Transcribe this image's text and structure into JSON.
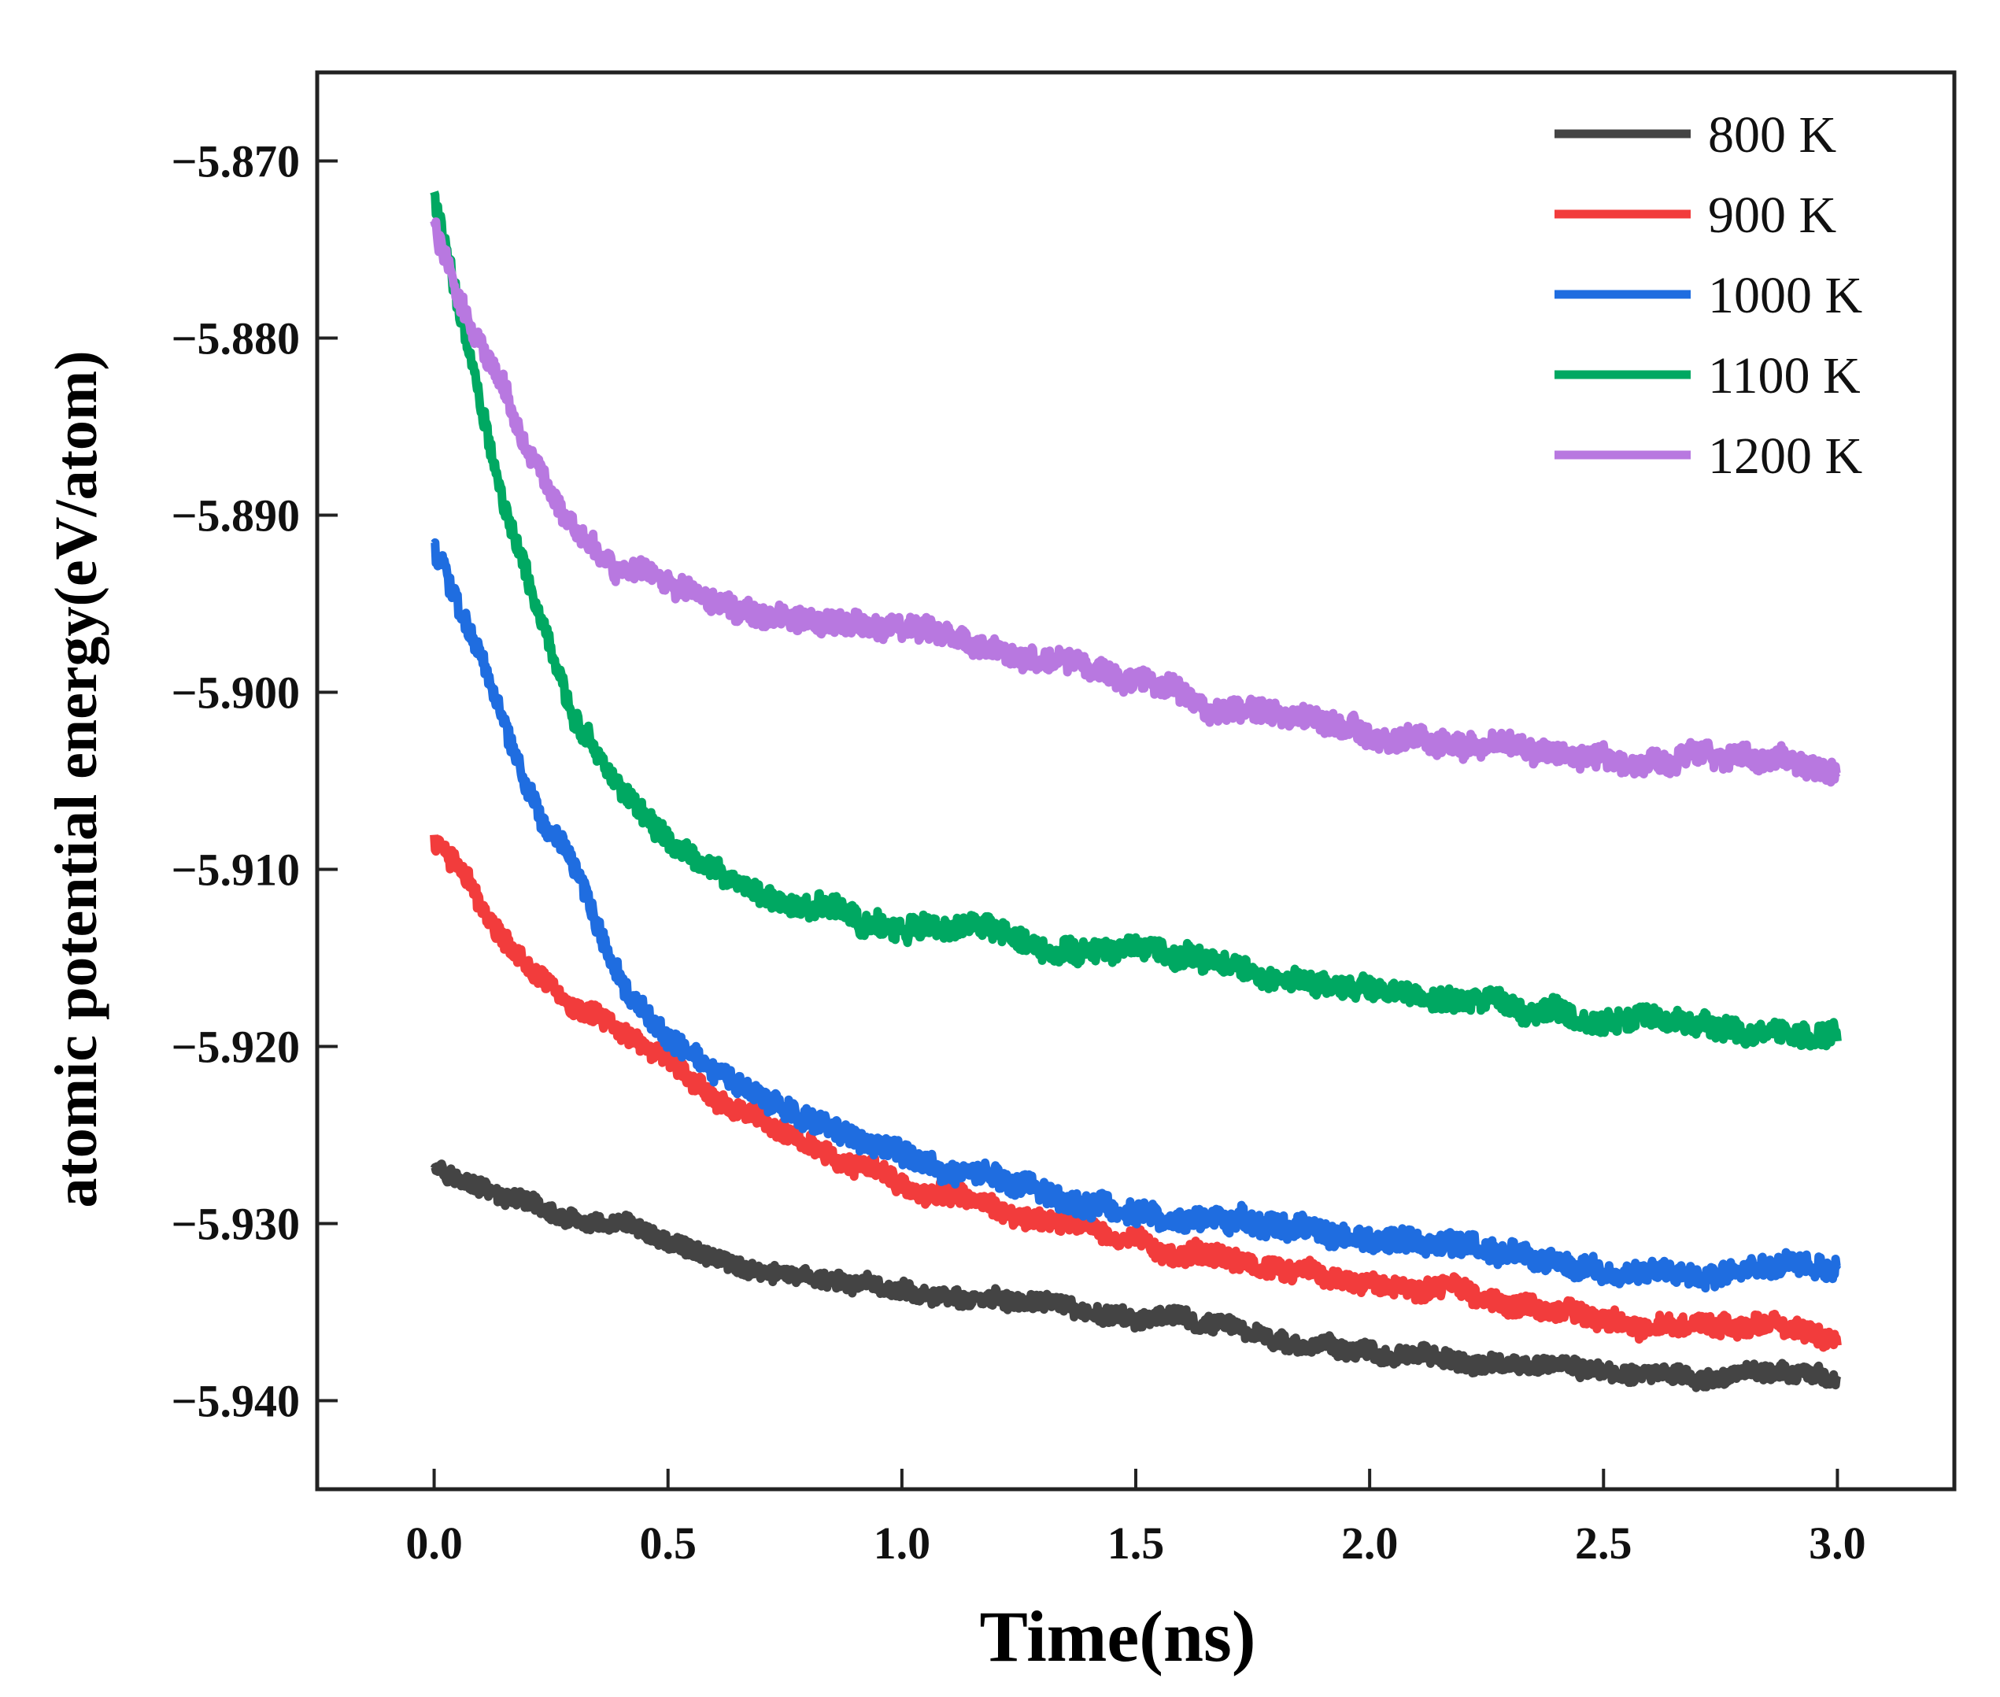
{
  "chart_data": {
    "type": "line",
    "title": "",
    "xlabel": "Time(ns)",
    "ylabel": "atomic potential energy(eV/atom)",
    "xlim": [
      -0.25,
      3.25
    ],
    "ylim": [
      -5.945,
      -5.865
    ],
    "xticks": [
      0.0,
      0.5,
      1.0,
      1.5,
      2.0,
      2.5,
      3.0
    ],
    "xtick_labels": [
      "0.0",
      "0.5",
      "1.0",
      "1.5",
      "2.0",
      "2.5",
      "3.0"
    ],
    "yticks": [
      -5.87,
      -5.88,
      -5.89,
      -5.9,
      -5.91,
      -5.92,
      -5.93,
      -5.94
    ],
    "ytick_labels": [
      "−5.870",
      "−5.880",
      "−5.890",
      "−5.900",
      "−5.910",
      "−5.920",
      "−5.930",
      "−5.940"
    ],
    "grid": false,
    "legend_position": "top-right",
    "series": [
      {
        "name": "800 K",
        "color": "#444444",
        "noise": 0.0006,
        "x": [
          0.0,
          0.1,
          0.2,
          0.3,
          0.5,
          0.75,
          1.0,
          1.25,
          1.5,
          1.75,
          2.0,
          2.25,
          2.5,
          2.75,
          3.0
        ],
        "y": [
          -5.9265,
          -5.928,
          -5.9292,
          -5.9302,
          -5.9317,
          -5.9331,
          -5.934,
          -5.9346,
          -5.9356,
          -5.9365,
          -5.9372,
          -5.938,
          -5.9383,
          -5.9385,
          -5.939
        ]
      },
      {
        "name": "900 K",
        "color": "#f23c3c",
        "noise": 0.0007,
        "x": [
          0.0,
          0.05,
          0.1,
          0.2,
          0.3,
          0.4,
          0.5,
          0.6,
          0.7,
          0.8,
          1.0,
          1.25,
          1.5,
          1.75,
          2.0,
          2.25,
          2.5,
          2.75,
          3.0
        ],
        "y": [
          -5.9085,
          -5.9095,
          -5.912,
          -5.915,
          -5.9175,
          -5.9195,
          -5.921,
          -5.9228,
          -5.924,
          -5.9255,
          -5.9278,
          -5.9295,
          -5.9308,
          -5.932,
          -5.9332,
          -5.9342,
          -5.935,
          -5.9357,
          -5.9362
        ]
      },
      {
        "name": "1000 K",
        "color": "#1f6de0",
        "noise": 0.0008,
        "x": [
          0.0,
          0.05,
          0.1,
          0.15,
          0.2,
          0.25,
          0.3,
          0.35,
          0.4,
          0.45,
          0.5,
          0.6,
          0.7,
          0.8,
          1.0,
          1.25,
          1.5,
          1.75,
          2.0,
          2.25,
          2.5,
          2.75,
          3.0
        ],
        "y": [
          -5.892,
          -5.8945,
          -5.898,
          -5.902,
          -5.906,
          -5.9085,
          -5.911,
          -5.9135,
          -5.9165,
          -5.9185,
          -5.92,
          -5.922,
          -5.9235,
          -5.9248,
          -5.9265,
          -5.9278,
          -5.929,
          -5.9298,
          -5.9307,
          -5.9315,
          -5.9322,
          -5.9326,
          -5.9328
        ]
      },
      {
        "name": "1100 K",
        "color": "#00a862",
        "noise": 0.0008,
        "x": [
          0.0,
          0.03,
          0.06,
          0.1,
          0.15,
          0.2,
          0.25,
          0.3,
          0.35,
          0.4,
          0.5,
          0.6,
          0.75,
          1.0,
          1.25,
          1.5,
          1.75,
          2.0,
          2.25,
          2.5,
          2.75,
          3.0
        ],
        "y": [
          -5.872,
          -5.8755,
          -5.879,
          -5.8835,
          -5.889,
          -5.8935,
          -5.8975,
          -5.9015,
          -5.9035,
          -5.9055,
          -5.9085,
          -5.9102,
          -5.912,
          -5.9133,
          -5.9142,
          -5.9152,
          -5.9162,
          -5.917,
          -5.9178,
          -5.9185,
          -5.919,
          -5.9193
        ]
      },
      {
        "name": "1200 K",
        "color": "#b878e0",
        "noise": 0.0008,
        "x": [
          0.0,
          0.05,
          0.1,
          0.15,
          0.2,
          0.25,
          0.3,
          0.4,
          0.5,
          0.6,
          0.75,
          1.0,
          1.25,
          1.5,
          1.75,
          2.0,
          2.25,
          2.5,
          2.75,
          3.0
        ],
        "y": [
          -5.8735,
          -5.8775,
          -5.8805,
          -5.8825,
          -5.886,
          -5.8885,
          -5.8902,
          -5.8925,
          -5.894,
          -5.895,
          -5.8958,
          -5.8967,
          -5.8978,
          -5.8997,
          -5.9012,
          -5.9023,
          -5.9028,
          -5.9032,
          -5.9038,
          -5.9045
        ]
      }
    ]
  }
}
